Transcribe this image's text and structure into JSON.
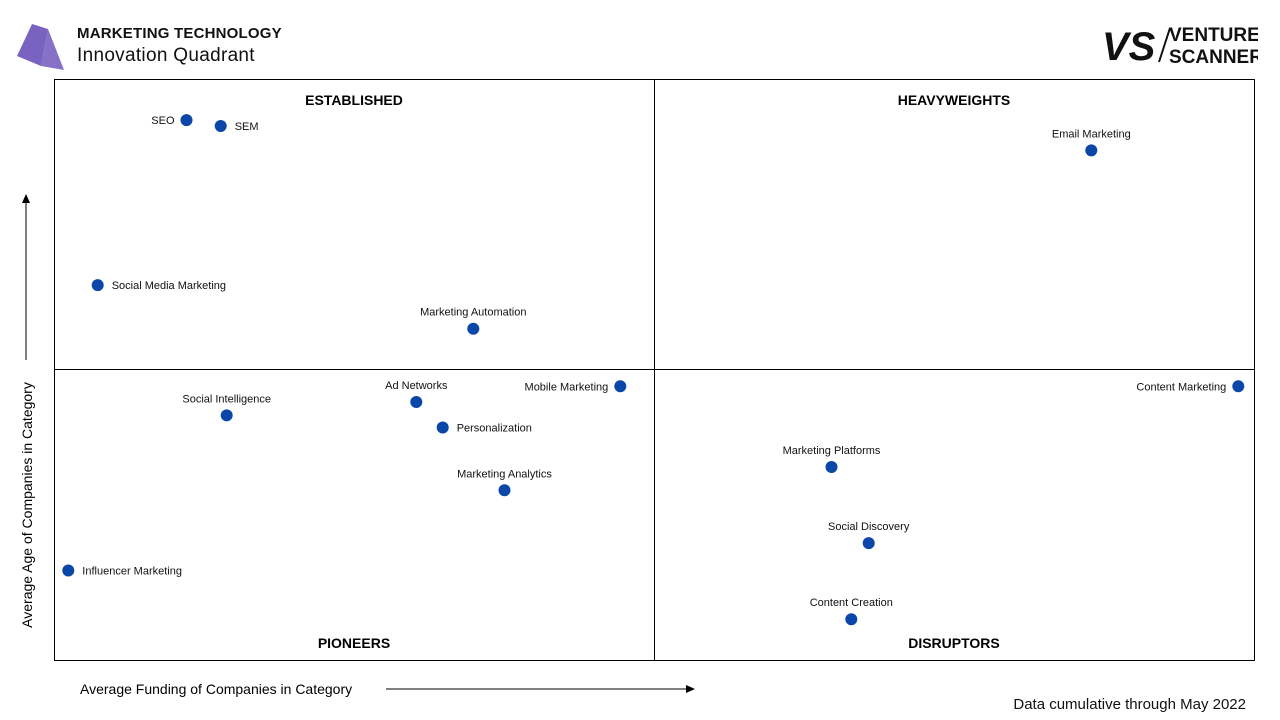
{
  "header": {
    "title": "MARKETING TECHNOLOGY",
    "subtitle": "Innovation Quadrant"
  },
  "brand": {
    "line1": "VENTURE",
    "line2": "SCANNER",
    "mark": "VS"
  },
  "colors": {
    "point": "#0a47a9",
    "axis": "#000000",
    "logo": "#7a62c1"
  },
  "footer": {
    "note": "Data cumulative through May 2022"
  },
  "chart_data": {
    "type": "scatter",
    "xlabel": "Average Funding of Companies in Category",
    "ylabel": "Average Age of Companies in Category",
    "quadrants": {
      "top_left": "ESTABLISHED",
      "top_right": "HEAVYWEIGHTS",
      "bottom_left": "PIONEERS",
      "bottom_right": "DISRUPTORS"
    },
    "points": [
      {
        "label": "SEO",
        "x": 0.22,
        "y": 0.93,
        "label_pos": "left"
      },
      {
        "label": "SEM",
        "x": 0.277,
        "y": 0.92,
        "label_pos": "right"
      },
      {
        "label": "Social Media Marketing",
        "x": 0.072,
        "y": 0.646,
        "label_pos": "right"
      },
      {
        "label": "Marketing Automation",
        "x": 0.698,
        "y": 0.571,
        "label_pos": "above"
      },
      {
        "label": "Email Marketing",
        "x": 1.728,
        "y": 0.878,
        "label_pos": "above"
      },
      {
        "label": "Ad Networks",
        "x": 0.603,
        "y": 0.445,
        "label_pos": "above"
      },
      {
        "label": "Mobile Marketing",
        "x": 0.943,
        "y": 0.472,
        "label_pos": "left"
      },
      {
        "label": "Social Intelligence",
        "x": 0.287,
        "y": 0.422,
        "label_pos": "above"
      },
      {
        "label": "Personalization",
        "x": 0.647,
        "y": 0.401,
        "label_pos": "right"
      },
      {
        "label": "Marketing Analytics",
        "x": 0.75,
        "y": 0.293,
        "label_pos": "above"
      },
      {
        "label": "Influencer Marketing",
        "x": 0.023,
        "y": 0.155,
        "label_pos": "right"
      },
      {
        "label": "Content Marketing",
        "x": 1.973,
        "y": 0.472,
        "label_pos": "left"
      },
      {
        "label": "Marketing Platforms",
        "x": 1.295,
        "y": 0.333,
        "label_pos": "above"
      },
      {
        "label": "Social Discovery",
        "x": 1.357,
        "y": 0.202,
        "label_pos": "above"
      },
      {
        "label": "Content Creation",
        "x": 1.328,
        "y": 0.071,
        "label_pos": "above"
      }
    ],
    "xlim": [
      0,
      2
    ],
    "ylim": [
      0,
      1
    ],
    "grid": false
  }
}
